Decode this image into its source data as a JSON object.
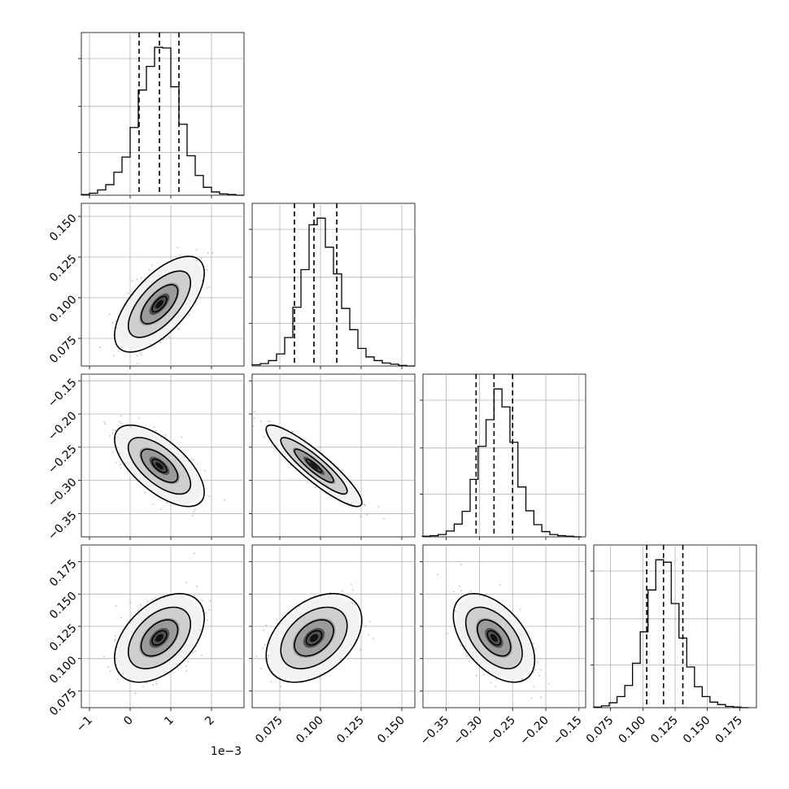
{
  "chart_data": {
    "type": "scatter",
    "subtype": "corner-plot",
    "title": "",
    "grid": true,
    "dimensions": [
      {
        "range": [
          -1.2,
          2.8
        ],
        "ticks": [
          -1,
          0,
          1,
          2
        ],
        "tick_labels": [
          "−1",
          "0",
          "1",
          "2"
        ],
        "offset_label": "1e−3",
        "scale": 0.001
      },
      {
        "range": [
          0.058,
          0.158
        ],
        "ticks": [
          0.075,
          0.1,
          0.125,
          0.15
        ],
        "tick_labels": [
          "0.075",
          "0.100",
          "0.125",
          "0.150"
        ],
        "offset_label": "",
        "scale": 1
      },
      {
        "range": [
          -0.385,
          -0.14
        ],
        "ticks": [
          -0.35,
          -0.3,
          -0.25,
          -0.2,
          -0.15
        ],
        "tick_labels": [
          "−0.35",
          "−0.30",
          "−0.25",
          "−0.20",
          "−0.15"
        ],
        "offset_label": "",
        "scale": 1
      },
      {
        "range": [
          0.062,
          0.188
        ],
        "ticks": [
          0.075,
          0.1,
          0.125,
          0.15,
          0.175
        ],
        "tick_labels": [
          "0.075",
          "0.100",
          "0.125",
          "0.150",
          "0.175"
        ],
        "offset_label": "",
        "scale": 1
      }
    ],
    "quantiles": [
      [
        0.22,
        0.72,
        1.2
      ],
      [
        0.084,
        0.096,
        0.11
      ],
      [
        -0.305,
        -0.278,
        -0.25
      ],
      [
        0.103,
        0.116,
        0.131
      ]
    ],
    "histograms": [
      {
        "bin_centers": [
          -1.1,
          -0.9,
          -0.7,
          -0.5,
          -0.3,
          -0.1,
          0.1,
          0.3,
          0.5,
          0.7,
          0.9,
          1.1,
          1.3,
          1.5,
          1.7,
          1.9,
          2.1,
          2.3,
          2.5,
          2.7
        ],
        "counts": [
          1,
          3,
          8,
          16,
          35,
          58,
          103,
          160,
          196,
          225,
          224,
          165,
          108,
          60,
          30,
          12,
          5,
          2,
          1,
          0
        ]
      },
      {
        "bin_centers": [
          0.0605,
          0.0655,
          0.0705,
          0.0755,
          0.0805,
          0.0855,
          0.0905,
          0.0955,
          0.1005,
          0.1055,
          0.1105,
          0.1155,
          0.1205,
          0.1255,
          0.1305,
          0.1355,
          0.1405,
          0.1455,
          0.1505,
          0.1555
        ],
        "counts": [
          2,
          4,
          9,
          20,
          47,
          97,
          159,
          233,
          244,
          196,
          152,
          95,
          60,
          29,
          15,
          9,
          5,
          3,
          1,
          0
        ]
      },
      {
        "bin_centers": [
          -0.38,
          -0.368,
          -0.356,
          -0.344,
          -0.332,
          -0.32,
          -0.308,
          -0.296,
          -0.284,
          -0.272,
          -0.26,
          -0.248,
          -0.236,
          -0.224,
          -0.212,
          -0.2,
          -0.188,
          -0.176,
          -0.164,
          -0.152
        ],
        "counts": [
          1,
          2,
          4,
          10,
          22,
          44,
          99,
          156,
          202,
          255,
          224,
          163,
          86,
          45,
          21,
          9,
          4,
          2,
          1,
          0
        ]
      },
      {
        "bin_centers": [
          0.065,
          0.071,
          0.077,
          0.083,
          0.089,
          0.095,
          0.101,
          0.107,
          0.113,
          0.119,
          0.125,
          0.131,
          0.137,
          0.143,
          0.149,
          0.155,
          0.161,
          0.167,
          0.173,
          0.179
        ],
        "counts": [
          1,
          3,
          8,
          18,
          36,
          72,
          123,
          191,
          240,
          236,
          169,
          113,
          66,
          34,
          18,
          9,
          5,
          2,
          1,
          0
        ]
      }
    ],
    "correlations": [
      [
        1,
        0.65,
        -0.65,
        0.45
      ],
      [
        0.65,
        1,
        -0.9,
        0.4
      ],
      [
        -0.65,
        -0.9,
        1,
        -0.5
      ],
      [
        0.45,
        0.4,
        -0.5,
        1
      ]
    ],
    "marginal_sigmas": [
      0.45,
      0.012,
      0.025,
      0.014
    ],
    "medians": [
      0.72,
      0.096,
      -0.278,
      0.116
    ]
  }
}
